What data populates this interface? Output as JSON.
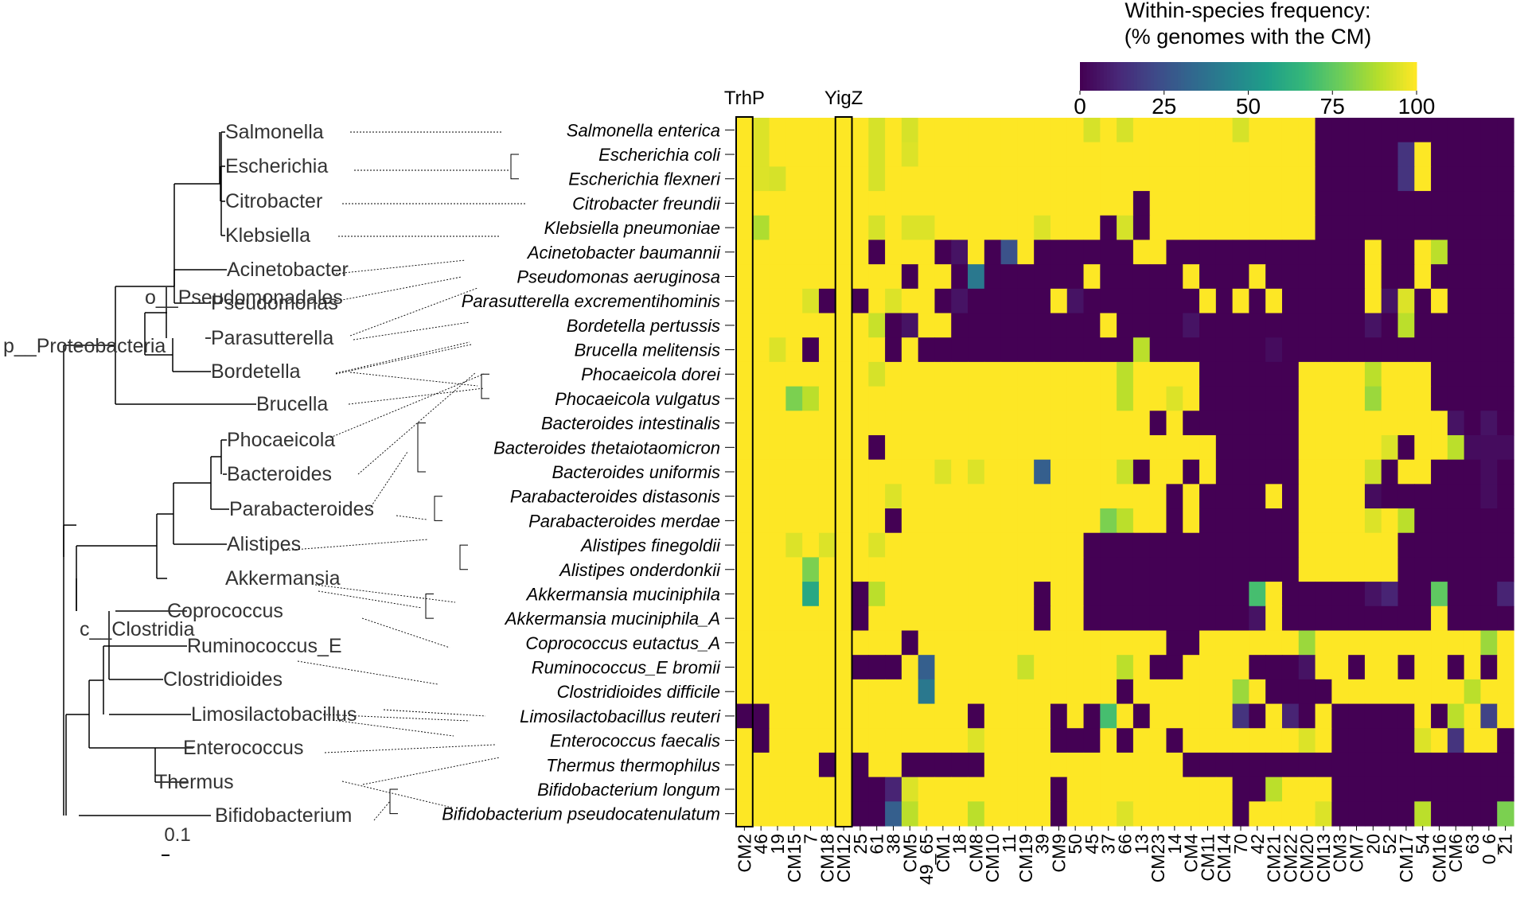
{
  "chart_data": {
    "type": "heatmap",
    "colorbar": {
      "title_line1": "Within-species frequency:",
      "title_line2": "(% genomes with the CM)",
      "ticks": [
        "0",
        "25",
        "50",
        "75",
        "100"
      ],
      "colormap": "viridis",
      "range": [
        0,
        100
      ]
    },
    "highlight_labels": [
      "TrhP",
      "YigZ"
    ],
    "highlight_columns": [
      "CM2",
      "CM12"
    ],
    "columns": [
      "CM2",
      "46",
      "19",
      "CM15",
      "7",
      "CM18",
      "CM12",
      "25",
      "61",
      "38",
      "CM5",
      "49_65",
      "CM1",
      "18",
      "CM8",
      "CM10",
      "11",
      "CM19",
      "39",
      "CM9",
      "50",
      "45",
      "37",
      "66",
      "13",
      "CM23",
      "14",
      "CM4",
      "CM11",
      "CM14",
      "70",
      "42",
      "CM21",
      "CM22",
      "CM20",
      "CM13",
      "CM3",
      "CM7",
      "20",
      "52",
      "CM17",
      "54",
      "CM16",
      "CM6",
      "63",
      "0_6",
      "21"
    ],
    "species": [
      "Salmonella enterica",
      "Escherichia coli",
      "Escherichia flexneri",
      "Citrobacter freundii",
      "Klebsiella pneumoniae",
      "Acinetobacter baumannii",
      "Pseudomonas aeruginosa",
      "Parasutterella excrementihominis",
      "Bordetella pertussis",
      "Brucella melitensis",
      "Phocaeicola dorei",
      "Phocaeicola vulgatus",
      "Bacteroides intestinalis",
      "Bacteroides thetaiotaomicron",
      "Bacteroides uniformis",
      "Parabacteroides distasonis",
      "Parabacteroides merdae",
      "Alistipes finegoldii",
      "Alistipes onderdonkii",
      "Akkermansia muciniphila",
      "Akkermansia muciniphila_A",
      "Coprococcus eutactus_A",
      "Ruminococcus_E bromii",
      "Clostridioides difficile",
      "Limosilactobacillus reuteri",
      "Enterococcus faecalis",
      "Thermus thermophilus",
      "Bifidobacterium longum",
      "Bifidobacterium pseudocatenulatum"
    ],
    "values": [
      [
        100,
        95,
        100,
        100,
        100,
        100,
        100,
        100,
        94,
        100,
        94,
        100,
        100,
        100,
        100,
        100,
        100,
        100,
        100,
        100,
        100,
        94,
        100,
        94,
        100,
        100,
        100,
        100,
        100,
        100,
        94,
        100,
        100,
        100,
        100,
        0,
        0,
        0,
        0,
        0,
        0,
        0,
        0,
        0,
        0,
        0,
        0
      ],
      [
        100,
        95,
        100,
        100,
        100,
        100,
        100,
        100,
        94,
        100,
        95,
        100,
        100,
        100,
        100,
        100,
        100,
        100,
        100,
        100,
        100,
        100,
        100,
        100,
        100,
        100,
        100,
        100,
        100,
        100,
        100,
        100,
        100,
        100,
        100,
        0,
        0,
        0,
        0,
        0,
        15,
        100,
        0,
        0,
        0,
        0,
        0
      ],
      [
        100,
        95,
        94,
        100,
        100,
        100,
        100,
        100,
        94,
        100,
        100,
        100,
        100,
        100,
        100,
        100,
        100,
        100,
        100,
        100,
        100,
        100,
        100,
        100,
        100,
        100,
        100,
        100,
        100,
        100,
        100,
        100,
        100,
        100,
        100,
        0,
        0,
        0,
        0,
        0,
        15,
        100,
        0,
        0,
        0,
        0,
        0
      ],
      [
        100,
        100,
        100,
        100,
        100,
        100,
        100,
        100,
        100,
        100,
        100,
        100,
        100,
        100,
        100,
        100,
        100,
        100,
        100,
        100,
        100,
        100,
        100,
        100,
        0,
        100,
        100,
        100,
        100,
        100,
        100,
        100,
        100,
        100,
        100,
        0,
        0,
        0,
        0,
        0,
        0,
        0,
        0,
        0,
        0,
        0,
        0
      ],
      [
        100,
        88,
        100,
        100,
        100,
        100,
        100,
        100,
        94,
        100,
        95,
        95,
        100,
        100,
        100,
        100,
        100,
        100,
        95,
        100,
        100,
        100,
        0,
        94,
        0,
        100,
        100,
        100,
        100,
        100,
        100,
        100,
        100,
        100,
        100,
        0,
        0,
        0,
        0,
        0,
        0,
        0,
        0,
        0,
        0,
        0,
        0
      ],
      [
        100,
        100,
        100,
        100,
        100,
        100,
        100,
        100,
        0,
        100,
        100,
        100,
        0,
        5,
        100,
        0,
        25,
        100,
        0,
        0,
        0,
        0,
        0,
        0,
        100,
        100,
        0,
        0,
        0,
        0,
        0,
        0,
        0,
        0,
        0,
        0,
        0,
        0,
        100,
        0,
        0,
        100,
        90,
        0,
        0,
        0,
        0
      ],
      [
        100,
        100,
        100,
        100,
        100,
        100,
        100,
        100,
        100,
        100,
        0,
        100,
        100,
        0,
        40,
        0,
        0,
        0,
        0,
        0,
        0,
        100,
        0,
        0,
        0,
        0,
        0,
        100,
        0,
        0,
        0,
        100,
        0,
        0,
        0,
        0,
        0,
        0,
        100,
        0,
        0,
        100,
        0,
        0,
        0,
        0,
        0
      ],
      [
        100,
        100,
        100,
        100,
        95,
        0,
        100,
        0,
        100,
        95,
        100,
        100,
        0,
        5,
        0,
        0,
        0,
        0,
        0,
        100,
        5,
        0,
        0,
        0,
        0,
        0,
        0,
        0,
        100,
        0,
        100,
        0,
        100,
        0,
        0,
        0,
        0,
        0,
        100,
        5,
        95,
        0,
        100,
        0,
        0,
        0,
        0
      ],
      [
        100,
        100,
        100,
        100,
        100,
        100,
        100,
        100,
        92,
        0,
        5,
        100,
        100,
        0,
        0,
        0,
        0,
        0,
        0,
        0,
        0,
        0,
        100,
        0,
        0,
        0,
        0,
        5,
        0,
        0,
        0,
        0,
        0,
        0,
        0,
        0,
        0,
        0,
        5,
        0,
        90,
        0,
        0,
        0,
        0,
        0,
        0
      ],
      [
        100,
        100,
        95,
        100,
        0,
        100,
        100,
        100,
        100,
        0,
        100,
        0,
        0,
        0,
        0,
        0,
        0,
        0,
        0,
        0,
        0,
        0,
        0,
        0,
        90,
        0,
        0,
        0,
        0,
        0,
        0,
        0,
        3,
        0,
        0,
        0,
        0,
        0,
        0,
        0,
        0,
        0,
        0,
        0,
        0,
        0,
        0
      ],
      [
        100,
        100,
        100,
        100,
        100,
        100,
        100,
        100,
        94,
        100,
        100,
        100,
        100,
        100,
        100,
        100,
        100,
        100,
        100,
        100,
        100,
        100,
        100,
        90,
        100,
        100,
        100,
        100,
        0,
        0,
        0,
        0,
        0,
        0,
        100,
        100,
        100,
        100,
        90,
        100,
        100,
        100,
        0,
        0,
        0,
        0,
        0
      ],
      [
        100,
        100,
        100,
        80,
        90,
        100,
        100,
        100,
        100,
        100,
        100,
        100,
        100,
        100,
        100,
        100,
        100,
        100,
        100,
        100,
        100,
        100,
        100,
        90,
        100,
        100,
        95,
        100,
        0,
        0,
        0,
        0,
        0,
        0,
        100,
        100,
        100,
        100,
        85,
        100,
        100,
        100,
        0,
        0,
        0,
        0,
        0
      ],
      [
        100,
        100,
        100,
        100,
        100,
        100,
        100,
        100,
        100,
        100,
        100,
        100,
        100,
        100,
        100,
        100,
        100,
        100,
        100,
        100,
        100,
        100,
        100,
        100,
        100,
        0,
        100,
        0,
        0,
        0,
        0,
        0,
        0,
        0,
        100,
        100,
        100,
        100,
        100,
        100,
        100,
        100,
        100,
        5,
        0,
        5,
        0
      ],
      [
        100,
        100,
        100,
        100,
        100,
        100,
        100,
        100,
        0,
        100,
        100,
        100,
        100,
        100,
        100,
        100,
        100,
        100,
        100,
        100,
        100,
        100,
        100,
        100,
        100,
        100,
        100,
        100,
        100,
        0,
        0,
        0,
        0,
        0,
        100,
        100,
        100,
        100,
        100,
        95,
        0,
        100,
        100,
        90,
        3,
        3,
        3
      ],
      [
        100,
        100,
        100,
        100,
        100,
        100,
        100,
        100,
        100,
        100,
        100,
        100,
        95,
        100,
        95,
        100,
        100,
        100,
        30,
        100,
        100,
        100,
        100,
        92,
        0,
        100,
        100,
        0,
        100,
        0,
        0,
        0,
        0,
        0,
        100,
        100,
        100,
        100,
        93,
        0,
        100,
        100,
        0,
        0,
        0,
        3,
        0
      ],
      [
        100,
        100,
        100,
        100,
        100,
        100,
        100,
        100,
        100,
        95,
        100,
        100,
        100,
        100,
        100,
        100,
        100,
        100,
        100,
        100,
        100,
        100,
        100,
        100,
        100,
        100,
        0,
        100,
        0,
        0,
        0,
        0,
        100,
        0,
        100,
        100,
        100,
        100,
        3,
        0,
        0,
        0,
        0,
        0,
        0,
        3,
        0
      ],
      [
        100,
        100,
        100,
        100,
        100,
        100,
        100,
        100,
        100,
        0,
        100,
        100,
        100,
        100,
        100,
        100,
        100,
        100,
        100,
        100,
        100,
        100,
        80,
        90,
        100,
        100,
        0,
        100,
        0,
        0,
        0,
        0,
        0,
        0,
        100,
        100,
        100,
        100,
        95,
        100,
        90,
        0,
        0,
        0,
        0,
        0,
        0
      ],
      [
        100,
        100,
        100,
        95,
        100,
        95,
        100,
        100,
        95,
        100,
        100,
        100,
        100,
        100,
        100,
        100,
        100,
        100,
        100,
        100,
        100,
        0,
        0,
        0,
        0,
        0,
        0,
        0,
        0,
        0,
        0,
        0,
        0,
        0,
        100,
        100,
        100,
        100,
        100,
        100,
        0,
        0,
        0,
        0,
        0,
        0,
        0
      ],
      [
        100,
        100,
        100,
        100,
        80,
        100,
        100,
        100,
        100,
        100,
        100,
        100,
        100,
        100,
        100,
        100,
        100,
        100,
        100,
        100,
        100,
        0,
        0,
        0,
        0,
        0,
        0,
        0,
        0,
        0,
        0,
        0,
        0,
        0,
        100,
        100,
        100,
        100,
        100,
        100,
        0,
        0,
        0,
        0,
        0,
        0,
        0
      ],
      [
        100,
        100,
        100,
        100,
        60,
        100,
        100,
        0,
        90,
        100,
        100,
        100,
        100,
        100,
        100,
        100,
        100,
        100,
        0,
        100,
        100,
        0,
        0,
        0,
        0,
        0,
        0,
        0,
        0,
        0,
        0,
        70,
        100,
        0,
        0,
        0,
        0,
        0,
        5,
        10,
        0,
        0,
        75,
        0,
        0,
        0,
        10
      ],
      [
        100,
        100,
        100,
        100,
        100,
        100,
        100,
        0,
        100,
        100,
        100,
        100,
        100,
        100,
        100,
        100,
        100,
        100,
        0,
        100,
        100,
        0,
        0,
        0,
        0,
        0,
        0,
        0,
        0,
        0,
        0,
        5,
        100,
        0,
        0,
        0,
        0,
        0,
        0,
        0,
        0,
        0,
        100,
        0,
        0,
        0,
        0
      ],
      [
        100,
        100,
        100,
        100,
        100,
        100,
        100,
        100,
        100,
        100,
        0,
        100,
        100,
        100,
        100,
        100,
        100,
        100,
        100,
        100,
        100,
        100,
        100,
        100,
        100,
        100,
        0,
        0,
        100,
        100,
        100,
        100,
        100,
        100,
        85,
        100,
        100,
        100,
        100,
        100,
        100,
        100,
        100,
        100,
        100,
        85,
        100
      ],
      [
        100,
        100,
        100,
        100,
        100,
        100,
        100,
        0,
        0,
        0,
        100,
        30,
        100,
        100,
        100,
        100,
        100,
        92,
        100,
        100,
        100,
        100,
        100,
        90,
        100,
        0,
        0,
        100,
        100,
        100,
        100,
        0,
        0,
        0,
        5,
        100,
        100,
        0,
        100,
        100,
        0,
        100,
        100,
        0,
        100,
        0,
        100
      ],
      [
        100,
        100,
        100,
        100,
        100,
        100,
        100,
        100,
        100,
        100,
        100,
        40,
        100,
        100,
        100,
        100,
        100,
        100,
        100,
        100,
        100,
        100,
        100,
        0,
        100,
        100,
        100,
        100,
        100,
        100,
        85,
        100,
        0,
        0,
        0,
        0,
        100,
        100,
        100,
        100,
        100,
        100,
        100,
        100,
        90,
        100,
        100
      ],
      [
        0,
        0,
        100,
        100,
        100,
        100,
        100,
        100,
        100,
        100,
        100,
        100,
        100,
        100,
        0,
        100,
        100,
        100,
        100,
        0,
        100,
        0,
        70,
        100,
        0,
        100,
        100,
        100,
        100,
        100,
        15,
        0,
        100,
        10,
        0,
        100,
        0,
        0,
        0,
        0,
        0,
        100,
        0,
        90,
        100,
        20,
        100
      ],
      [
        100,
        0,
        100,
        100,
        100,
        100,
        100,
        100,
        100,
        100,
        100,
        100,
        100,
        100,
        95,
        100,
        100,
        100,
        100,
        0,
        0,
        0,
        100,
        0,
        100,
        100,
        0,
        100,
        100,
        100,
        100,
        100,
        100,
        100,
        95,
        100,
        0,
        0,
        0,
        0,
        0,
        95,
        100,
        15,
        100,
        100,
        0
      ],
      [
        100,
        100,
        100,
        100,
        100,
        0,
        100,
        0,
        100,
        100,
        0,
        0,
        0,
        0,
        0,
        100,
        100,
        100,
        100,
        100,
        100,
        100,
        100,
        100,
        100,
        100,
        100,
        0,
        0,
        0,
        0,
        0,
        0,
        0,
        0,
        0,
        0,
        0,
        0,
        0,
        0,
        0,
        0,
        0,
        0,
        0,
        0
      ],
      [
        100,
        100,
        100,
        100,
        100,
        100,
        100,
        0,
        0,
        10,
        95,
        100,
        100,
        100,
        100,
        100,
        100,
        100,
        100,
        0,
        100,
        100,
        100,
        100,
        100,
        100,
        100,
        100,
        100,
        100,
        0,
        0,
        90,
        100,
        100,
        100,
        0,
        0,
        0,
        0,
        0,
        0,
        0,
        0,
        0,
        0,
        0
      ],
      [
        100,
        100,
        100,
        100,
        100,
        100,
        100,
        0,
        0,
        30,
        90,
        100,
        100,
        100,
        90,
        100,
        100,
        100,
        100,
        0,
        100,
        100,
        100,
        95,
        100,
        100,
        100,
        100,
        100,
        100,
        0,
        100,
        100,
        100,
        100,
        95,
        0,
        0,
        0,
        0,
        0,
        90,
        0,
        0,
        0,
        0,
        80
      ]
    ]
  },
  "tree": {
    "scale_label": "0.1",
    "rank_labels": [
      "p__Proteobacteria",
      "o__Pseudomonadales",
      "c__Clostridia"
    ],
    "genera": [
      "Salmonella",
      "Escherichia",
      "Citrobacter",
      "Klebsiella",
      "Acinetobacter",
      "Pseudomonas",
      "Parasutterella",
      "Bordetella",
      "Brucella",
      "Phocaeicola",
      "Bacteroides",
      "Parabacteroides",
      "Alistipes",
      "Akkermansia",
      "Coprococcus",
      "Ruminococcus_E",
      "Clostridioides",
      "Limosilactobacillus",
      "Enterococcus",
      "Thermus",
      "Bifidobacterium"
    ]
  }
}
